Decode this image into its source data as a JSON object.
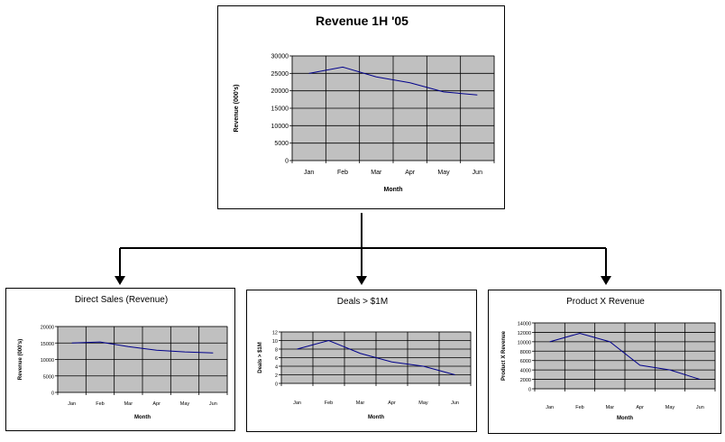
{
  "charts": [
    {
      "id": "main",
      "chart_data": {
        "type": "line",
        "title": "Revenue 1H '05",
        "xlabel": "Month",
        "ylabel": "Revenue (000's)",
        "categories": [
          "Jan",
          "Feb",
          "Mar",
          "Apr",
          "May",
          "Jun"
        ],
        "series": [
          {
            "values": [
              25000,
              26800,
              24000,
              22300,
              19700,
              18800
            ]
          }
        ],
        "ylim": [
          0,
          30000
        ],
        "yticks": [
          "0",
          "5000",
          "10000",
          "15000",
          "20000",
          "25000",
          "30000"
        ],
        "grid": true,
        "plot_background": "#c0c0c0",
        "line_color": "#00008b"
      }
    },
    {
      "id": "direct",
      "chart_data": {
        "type": "line",
        "title": "Direct Sales (Revenue)",
        "xlabel": "Month",
        "ylabel": "Revenue (000's)",
        "categories": [
          "Jan",
          "Feb",
          "Mar",
          "Apr",
          "May",
          "Jun"
        ],
        "series": [
          {
            "values": [
              15000,
              15300,
              13900,
              12800,
              12300,
              12000
            ]
          }
        ],
        "ylim": [
          0,
          20000
        ],
        "yticks": [
          "0",
          "5000",
          "10000",
          "15000",
          "20000"
        ],
        "grid": true,
        "plot_background": "#c0c0c0",
        "line_color": "#00008b"
      }
    },
    {
      "id": "deals",
      "chart_data": {
        "type": "line",
        "title": "Deals > $1M",
        "xlabel": "Month",
        "ylabel": "Deals > $1M",
        "categories": [
          "Jan",
          "Feb",
          "Mar",
          "Apr",
          "May",
          "Jun"
        ],
        "series": [
          {
            "values": [
              8,
              10,
              7,
              5,
              4,
              2
            ]
          }
        ],
        "ylim": [
          0,
          12
        ],
        "yticks": [
          "0",
          "2",
          "4",
          "6",
          "8",
          "10",
          "12"
        ],
        "grid": true,
        "plot_background": "#c0c0c0",
        "line_color": "#00008b"
      }
    },
    {
      "id": "productx",
      "chart_data": {
        "type": "line",
        "title": "Product X Revenue",
        "xlabel": "Month",
        "ylabel": "Product X Revenue",
        "categories": [
          "Jan",
          "Feb",
          "Mar",
          "Apr",
          "May",
          "Jun"
        ],
        "series": [
          {
            "values": [
              10000,
              11800,
              10000,
              5000,
              4000,
              2000
            ]
          }
        ],
        "ylim": [
          0,
          14000
        ],
        "yticks": [
          "0",
          "2000",
          "4000",
          "6000",
          "8000",
          "10000",
          "12000",
          "14000"
        ],
        "grid": true,
        "plot_background": "#c0c0c0",
        "line_color": "#00008b"
      }
    }
  ],
  "connector_color": "#000000"
}
